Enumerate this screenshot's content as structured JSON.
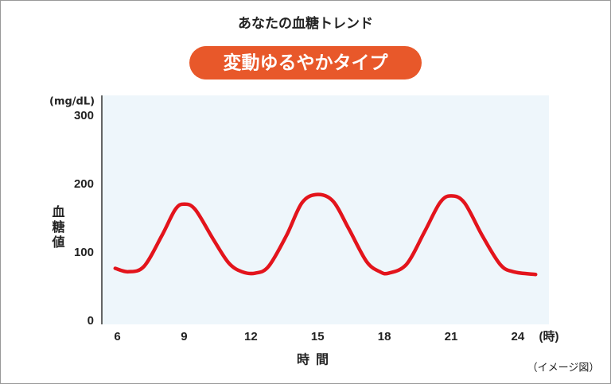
{
  "chart_data": {
    "type": "line",
    "title": "あなたの血糖トレンド",
    "badge": "変動ゆるやかタイプ",
    "y_unit": "(mg/dL)",
    "y_label": "血糖値",
    "x_label": "時間",
    "x_unit": "(時)",
    "note": "（イメージ図）",
    "x": [
      5.9,
      6.5,
      7.2,
      8,
      8.6,
      9,
      9.5,
      10.3,
      11,
      11.6,
      12.2,
      12.8,
      13.6,
      14.3,
      15,
      15.7,
      16.4,
      17.2,
      17.8,
      18.2,
      19,
      19.8,
      20.5,
      21,
      21.6,
      22.4,
      23.2,
      23.8,
      24.8
    ],
    "values": [
      82,
      77,
      85,
      130,
      168,
      176,
      168,
      125,
      90,
      77,
      75,
      85,
      130,
      178,
      190,
      180,
      140,
      92,
      77,
      75,
      88,
      135,
      178,
      188,
      178,
      130,
      88,
      77,
      73
    ],
    "color": "#e3141c",
    "badge_color": "#e8582a",
    "plot_background": "#eef6fb",
    "xlim": [
      5.3,
      25.4
    ],
    "ylim": [
      0,
      335
    ],
    "xticks": [
      6,
      9,
      12,
      15,
      18,
      21,
      24
    ],
    "yticks": [
      0,
      100,
      200,
      300
    ]
  }
}
